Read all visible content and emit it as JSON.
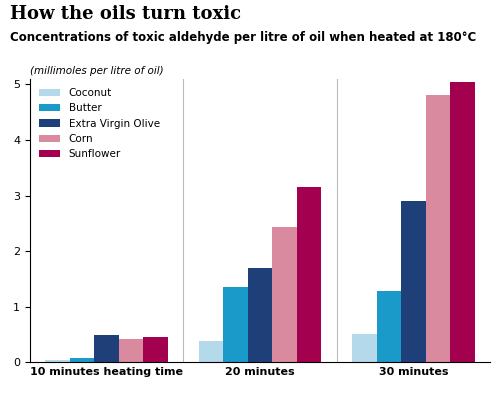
{
  "chart_data": {
    "type": "bar",
    "title": "How the oils turn toxic",
    "subtitle": "Concentrations of toxic aldehyde per litre of oil when heated at 180°C",
    "y_label": "(millimoles per litre of oil)",
    "categories": [
      "10 minutes heating time",
      "20 minutes",
      "30 minutes"
    ],
    "series": [
      {
        "name": "Coconut",
        "color": "#b3d9ea",
        "values": [
          0.05,
          0.38,
          0.52
        ]
      },
      {
        "name": "Butter",
        "color": "#1a9ac9",
        "values": [
          0.08,
          1.35,
          1.28
        ]
      },
      {
        "name": "Extra Virgin Olive",
        "color": "#1f3f78",
        "values": [
          0.5,
          1.7,
          2.9
        ]
      },
      {
        "name": "Corn",
        "color": "#d98a9e",
        "values": [
          0.43,
          2.43,
          4.8
        ]
      },
      {
        "name": "Sunflower",
        "color": "#a3004f",
        "values": [
          0.45,
          3.15,
          5.05
        ]
      }
    ],
    "ylim": [
      0,
      5.1
    ],
    "yticks": [
      0,
      1,
      2,
      3,
      4,
      5
    ],
    "legend": "upper left"
  }
}
